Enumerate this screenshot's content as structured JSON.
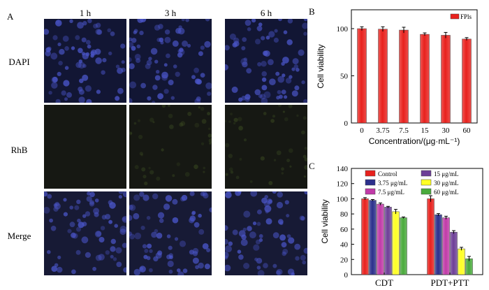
{
  "panel_a": {
    "label": "A",
    "columns": [
      "1 h",
      "3 h",
      "6 h"
    ],
    "rows": [
      "DAPI",
      "RhB",
      "Merge"
    ]
  },
  "colors": {
    "dapi_bg": "#121634",
    "dapi_cell": "#4a55c8",
    "rhb_bg": "#161813",
    "merge_bg": "#171a35",
    "red": "#e8211d",
    "navy": "#2b2f8c",
    "magenta": "#c13aa8",
    "purple": "#6d3f97",
    "yellow": "#ffff24",
    "green": "#4aaa3c"
  },
  "chart_data": [
    {
      "panel": "B",
      "type": "bar",
      "categories": [
        "0",
        "3.75",
        "7.5",
        "15",
        "30",
        "60"
      ],
      "series": [
        {
          "name": "FPls",
          "values": [
            100,
            99.5,
            98.5,
            94,
            93,
            89
          ],
          "errors": [
            2,
            2.5,
            3,
            1.5,
            3,
            1.5
          ],
          "color": "#e8211d"
        }
      ],
      "xlabel": "Concentration/(μg·mL⁻¹)",
      "ylabel": "Cell viability",
      "ylim": [
        0,
        120
      ],
      "yticks": [
        0,
        50,
        100
      ],
      "legend": "top-right",
      "grid": false
    },
    {
      "panel": "C",
      "type": "bar",
      "categories": [
        "CDT",
        "PDT+PTT"
      ],
      "series": [
        {
          "name": "Control",
          "values": [
            100,
            100
          ],
          "errors": [
            1.5,
            4
          ],
          "color": "#e8211d"
        },
        {
          "name": "3.75 μg/mL",
          "values": [
            98,
            79
          ],
          "errors": [
            1,
            1.5
          ],
          "color": "#2b2f8c"
        },
        {
          "name": "7.5 μg/mL",
          "values": [
            93,
            75
          ],
          "errors": [
            1.5,
            2
          ],
          "color": "#c13aa8"
        },
        {
          "name": "15 μg/mL",
          "values": [
            89,
            56
          ],
          "errors": [
            1,
            2
          ],
          "color": "#6d3f97"
        },
        {
          "name": "30 μg/mL",
          "values": [
            83,
            34
          ],
          "errors": [
            3,
            2
          ],
          "color": "#ffff24"
        },
        {
          "name": "60 μg/mL",
          "values": [
            75,
            21
          ],
          "errors": [
            1,
            3
          ],
          "color": "#4aaa3c"
        }
      ],
      "xlabel": "",
      "ylabel": "Cell viability",
      "ylim": [
        0,
        140
      ],
      "yticks": [
        0,
        20,
        40,
        60,
        80,
        100,
        120,
        140
      ],
      "legend": "top",
      "grid": false
    }
  ]
}
